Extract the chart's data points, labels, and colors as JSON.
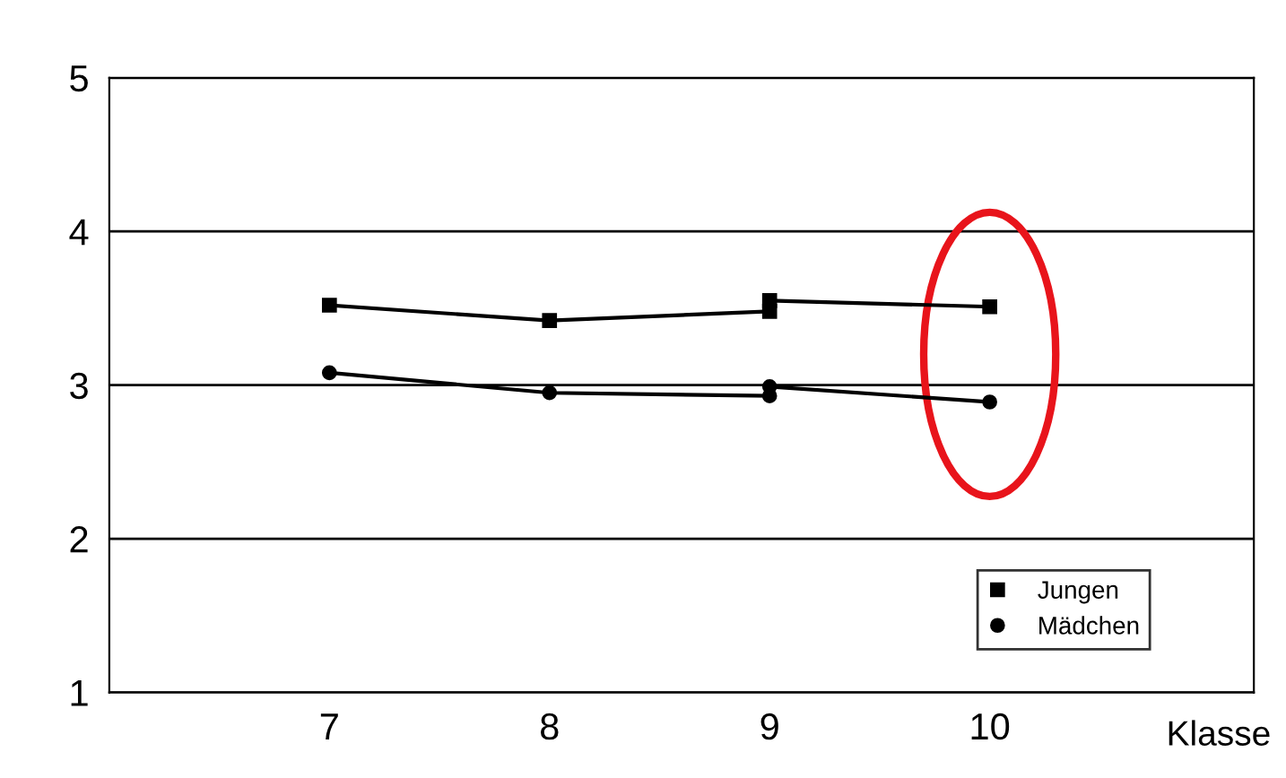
{
  "chart_data": {
    "type": "line",
    "xlabel": "Klasse",
    "xlim": [
      6,
      11.2
    ],
    "xticks": [
      7,
      8,
      9,
      10
    ],
    "ylim": [
      1,
      5
    ],
    "yticks": [
      1,
      2,
      3,
      4,
      5
    ],
    "grid": "y",
    "legend": "bottom right",
    "line_style": "solid",
    "series": [
      {
        "name": "Jungen",
        "color": "#000000",
        "marker": "square",
        "x": [
          7,
          8,
          9,
          9,
          10
        ],
        "values": [
          3.52,
          3.42,
          3.48,
          3.55,
          3.51
        ]
      },
      {
        "name": "Mädchen",
        "color": "#000000",
        "marker": "circle",
        "x": [
          7,
          8,
          9,
          9,
          10
        ],
        "values": [
          3.08,
          2.95,
          2.93,
          2.99,
          2.89
        ]
      }
    ]
  }
}
